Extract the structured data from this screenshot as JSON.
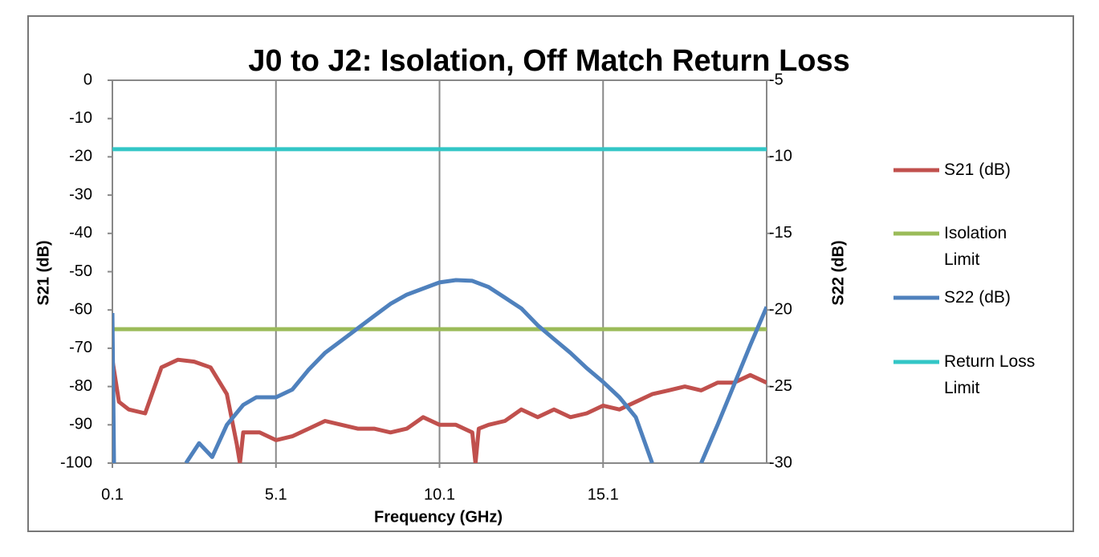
{
  "chart_data": {
    "type": "line",
    "title": "J0 to J2: Isolation, Off Match Return Loss",
    "x_label": "Frequency (GHz)",
    "y_label": "S21 (dB)",
    "y2_label": "S22 (dB)",
    "xlim": [
      0.1,
      20.1
    ],
    "xticks": [
      0.1,
      5.1,
      10.1,
      15.1
    ],
    "ylim": [
      -100,
      0
    ],
    "yticks": [
      0,
      -10,
      -20,
      -30,
      -40,
      -50,
      -60,
      -70,
      -80,
      -90,
      -100
    ],
    "y2lim": [
      -30,
      -5
    ],
    "y2ticks": [
      -5,
      -10,
      -15,
      -20,
      -25,
      -30
    ],
    "grid": "x",
    "legend": "right",
    "series": [
      {
        "name": "S21 (dB)",
        "color": "#c0504d",
        "x": [
          0.1,
          0.3,
          0.6,
          1.1,
          1.6,
          2.1,
          2.6,
          3.1,
          3.6,
          3.9,
          4.0,
          4.1,
          4.6,
          5.1,
          5.6,
          6.1,
          6.6,
          7.1,
          7.6,
          8.1,
          8.6,
          9.1,
          9.6,
          10.1,
          10.6,
          11.1,
          11.2,
          11.3,
          11.6,
          12.1,
          12.6,
          13.1,
          13.6,
          14.1,
          14.6,
          15.1,
          15.6,
          16.1,
          16.6,
          17.1,
          17.6,
          18.1,
          18.6,
          19.1,
          19.6,
          20.1
        ],
        "values": [
          -73,
          -84,
          -86,
          -87,
          -75,
          -73,
          -73.5,
          -75,
          -82,
          -95,
          -100,
          -92,
          -92,
          -94,
          -93,
          -91,
          -89,
          -90,
          -91,
          -91,
          -92,
          -91,
          -88,
          -90,
          -90,
          -92,
          -100,
          -91,
          -90,
          -89,
          -86,
          -88,
          -86,
          -88,
          -87,
          -85,
          -86,
          -84,
          -82,
          -81,
          -80,
          -81,
          -79,
          -79,
          -77,
          -79
        ]
      },
      {
        "name": "Isolation Limit",
        "color": "#9bbb59",
        "x": [
          0.1,
          20.1
        ],
        "values": [
          -65,
          -65
        ]
      },
      {
        "name": "S22 (dB)",
        "color": "#4f81bd",
        "axis": "y2",
        "x": [
          0.1,
          0.15,
          1.0,
          2.35,
          2.75,
          3.15,
          3.6,
          4.1,
          4.5,
          5.1,
          5.6,
          6.1,
          6.6,
          7.1,
          7.6,
          8.1,
          8.6,
          9.1,
          9.6,
          10.1,
          10.6,
          11.1,
          11.6,
          12.1,
          12.6,
          13.1,
          13.6,
          14.1,
          14.6,
          15.1,
          15.6,
          16.1,
          16.6,
          17.3,
          18.1,
          18.6,
          19.1,
          19.6,
          20.1
        ],
        "values": [
          -20.2,
          -30,
          null,
          -30,
          -28.7,
          -29.6,
          -27.5,
          -26.2,
          -25.7,
          -25.7,
          -25.2,
          -23.9,
          -22.8,
          -22.0,
          -21.2,
          -20.4,
          -19.6,
          -19.0,
          -18.6,
          -18.2,
          -18.05,
          -18.1,
          -18.5,
          -19.2,
          -19.9,
          -21.0,
          -21.9,
          -22.8,
          -23.8,
          -24.7,
          -25.7,
          -27.0,
          -30,
          null,
          -30,
          -27.5,
          -24.9,
          -22.3,
          -19.8
        ]
      },
      {
        "name": "Return Loss Limit",
        "color": "#33c6c6",
        "axis": "y2",
        "x": [
          0.1,
          20.1
        ],
        "values": [
          -9.5,
          -9.5
        ]
      }
    ]
  }
}
